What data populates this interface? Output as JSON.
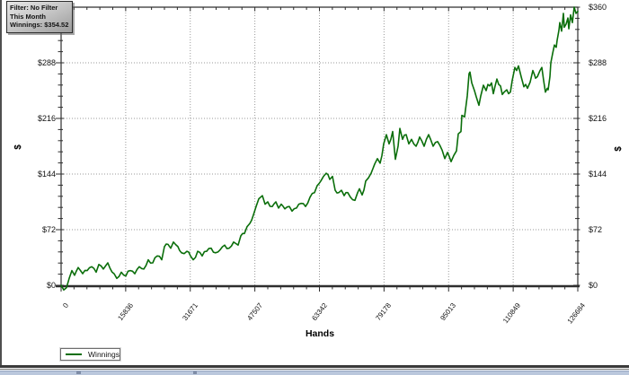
{
  "tooltip": {
    "filter_line": "Filter: No Filter",
    "period_line": "This Month",
    "winnings_line": "Winnings: $354.52"
  },
  "axes": {
    "x_title": "Hands",
    "y_title_left": "$",
    "y_title_right": "$"
  },
  "legend": {
    "label": "Winnings"
  },
  "colors": {
    "line": "#0a6e0a",
    "axis": "#2e2e2e",
    "grid": "#9a9a9a",
    "strip": "#bac7dc"
  },
  "chart_data": {
    "type": "line",
    "title": "",
    "xlabel": "Hands",
    "ylabel": "$",
    "xlim": [
      0,
      126684
    ],
    "ylim": [
      0,
      360
    ],
    "x_tick_labels": [
      "0",
      "15836",
      "31671",
      "47507",
      "63342",
      "79178",
      "95013",
      "110849",
      "126684"
    ],
    "y_tick_labels": [
      "$0",
      "$72",
      "$144",
      "$216",
      "$288",
      "$360"
    ],
    "grid": "dotted",
    "legend_position": "bottom-left",
    "final_value": 354.52,
    "series": [
      {
        "name": "Winnings",
        "color": "#0a6e0a",
        "points": [
          [
            0,
            0
          ],
          [
            660,
            -6
          ],
          [
            1320,
            -3
          ],
          [
            1980,
            9
          ],
          [
            2640,
            19
          ],
          [
            3300,
            13
          ],
          [
            4190,
            23
          ],
          [
            5290,
            15
          ],
          [
            6390,
            19
          ],
          [
            7490,
            24
          ],
          [
            8590,
            17
          ],
          [
            9250,
            27
          ],
          [
            10360,
            21
          ],
          [
            11460,
            29
          ],
          [
            13000,
            15
          ],
          [
            13660,
            9
          ],
          [
            14760,
            17
          ],
          [
            15860,
            12
          ],
          [
            16970,
            19
          ],
          [
            18070,
            15
          ],
          [
            19170,
            24
          ],
          [
            20270,
            21
          ],
          [
            21370,
            33
          ],
          [
            22470,
            29
          ],
          [
            23580,
            38
          ],
          [
            24680,
            33
          ],
          [
            25340,
            50
          ],
          [
            26220,
            53
          ],
          [
            26880,
            48
          ],
          [
            27540,
            56
          ],
          [
            28640,
            50
          ],
          [
            29520,
            42
          ],
          [
            30180,
            41
          ],
          [
            30840,
            44
          ],
          [
            31730,
            38
          ],
          [
            32390,
            33
          ],
          [
            33490,
            44
          ],
          [
            34590,
            38
          ],
          [
            35690,
            44
          ],
          [
            36790,
            48
          ],
          [
            37900,
            42
          ],
          [
            39000,
            46
          ],
          [
            40100,
            52
          ],
          [
            41200,
            48
          ],
          [
            42300,
            56
          ],
          [
            43400,
            52
          ],
          [
            44060,
            64
          ],
          [
            44950,
            67
          ],
          [
            45610,
            76
          ],
          [
            46270,
            80
          ],
          [
            47150,
            91
          ],
          [
            47810,
            102
          ],
          [
            48470,
            112
          ],
          [
            49350,
            116
          ],
          [
            50010,
            105
          ],
          [
            50670,
            108
          ],
          [
            51780,
            102
          ],
          [
            52660,
            108
          ],
          [
            53320,
            100
          ],
          [
            53980,
            105
          ],
          [
            54860,
            99
          ],
          [
            55960,
            102
          ],
          [
            56620,
            96
          ],
          [
            57720,
            100
          ],
          [
            58830,
            106
          ],
          [
            59930,
            102
          ],
          [
            61030,
            114
          ],
          [
            62130,
            120
          ],
          [
            62790,
            129
          ],
          [
            63670,
            135
          ],
          [
            64330,
            141
          ],
          [
            64990,
            145
          ],
          [
            65880,
            137
          ],
          [
            66540,
            141
          ],
          [
            67200,
            123
          ],
          [
            68080,
            120
          ],
          [
            68740,
            123
          ],
          [
            69400,
            116
          ],
          [
            70280,
            120
          ],
          [
            70940,
            114
          ],
          [
            72040,
            110
          ],
          [
            72710,
            120
          ],
          [
            73150,
            125
          ],
          [
            73810,
            117
          ],
          [
            74690,
            135
          ],
          [
            75350,
            139
          ],
          [
            76010,
            145
          ],
          [
            76890,
            157
          ],
          [
            77550,
            164
          ],
          [
            78210,
            158
          ],
          [
            79090,
            183
          ],
          [
            79760,
            195
          ],
          [
            80420,
            183
          ],
          [
            81300,
            199
          ],
          [
            81960,
            163
          ],
          [
            82620,
            180
          ],
          [
            83060,
            203
          ],
          [
            83720,
            189
          ],
          [
            84600,
            195
          ],
          [
            85260,
            183
          ],
          [
            85920,
            189
          ],
          [
            87030,
            180
          ],
          [
            87910,
            192
          ],
          [
            89010,
            180
          ],
          [
            90110,
            195
          ],
          [
            91210,
            180
          ],
          [
            92310,
            186
          ],
          [
            93420,
            175
          ],
          [
            94080,
            164
          ],
          [
            94740,
            172
          ],
          [
            95620,
            160
          ],
          [
            96280,
            168
          ],
          [
            96940,
            174
          ],
          [
            97380,
            196
          ],
          [
            98040,
            199
          ],
          [
            98260,
            220
          ],
          [
            98920,
            218
          ],
          [
            99580,
            245
          ],
          [
            100030,
            274
          ],
          [
            100250,
            276
          ],
          [
            100690,
            262
          ],
          [
            101350,
            252
          ],
          [
            101790,
            244
          ],
          [
            102450,
            233
          ],
          [
            102890,
            245
          ],
          [
            103550,
            259
          ],
          [
            104210,
            252
          ],
          [
            104650,
            260
          ],
          [
            105090,
            258
          ],
          [
            105530,
            262
          ],
          [
            105970,
            248
          ],
          [
            106410,
            258
          ],
          [
            106860,
            267
          ],
          [
            107300,
            260
          ],
          [
            107740,
            258
          ],
          [
            108180,
            247
          ],
          [
            108620,
            250
          ],
          [
            109280,
            253
          ],
          [
            109720,
            248
          ],
          [
            110160,
            250
          ],
          [
            110600,
            265
          ],
          [
            111260,
            282
          ],
          [
            111700,
            278
          ],
          [
            112140,
            284
          ],
          [
            112800,
            270
          ],
          [
            113460,
            257
          ],
          [
            113910,
            260
          ],
          [
            114350,
            255
          ],
          [
            115010,
            263
          ],
          [
            115670,
            278
          ],
          [
            116110,
            272
          ],
          [
            116330,
            268
          ],
          [
            116770,
            270
          ],
          [
            117430,
            278
          ],
          [
            117870,
            282
          ],
          [
            118310,
            265
          ],
          [
            118750,
            250
          ],
          [
            119190,
            255
          ],
          [
            119410,
            253
          ],
          [
            119850,
            270
          ],
          [
            120070,
            288
          ],
          [
            120510,
            300
          ],
          [
            120960,
            311
          ],
          [
            121400,
            308
          ],
          [
            121620,
            317
          ],
          [
            122060,
            330
          ],
          [
            122280,
            340
          ],
          [
            122720,
            329
          ],
          [
            123160,
            352
          ],
          [
            123380,
            334
          ],
          [
            123820,
            338
          ],
          [
            124260,
            346
          ],
          [
            124480,
            332
          ],
          [
            124920,
            350
          ],
          [
            125360,
            340
          ],
          [
            125800,
            360
          ],
          [
            126240,
            352
          ],
          [
            126684,
            354.52
          ]
        ]
      }
    ]
  }
}
